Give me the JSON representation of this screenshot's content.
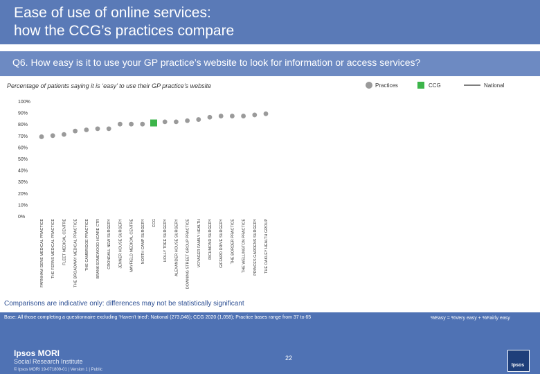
{
  "header": {
    "title": "Ease of use of online services:\nhow the CCG’s practices compare",
    "question": "Q6. How easy is it to use your GP practice’s website to look for information or access services?"
  },
  "legend": {
    "practices": "Practices",
    "ccg": "CCG",
    "national": "National"
  },
  "colors": {
    "practice": "#9a9a9a",
    "ccg": "#3cb54a",
    "national": "#555555",
    "title_band": "#5a7ab7",
    "footer_band": "#4f72b4"
  },
  "chart_data": {
    "type": "scatter",
    "title": "Percentage of patients saying it is ‘easy’ to use their GP practice’s website",
    "ylim": [
      0,
      100
    ],
    "ytick_labels": [
      "0%",
      "10%",
      "20%",
      "30%",
      "40%",
      "50%",
      "60%",
      "70%",
      "80%",
      "90%",
      "100%"
    ],
    "categories": [
      "FARNHAM DENE MEDICAL PRACTICE",
      "THE FERNS MEDICAL PRACTICE",
      "FLEET MEDICAL CENTRE",
      "THE BROADWAY MEDICAL PRACTICE",
      "THE CAMBRIDGE PRACTICE",
      "BRANKSOMEWOOD HCARE CTR",
      "CRONDALL NEW SURGERY",
      "JENNER HOUSE SURGERY",
      "MAYFIELD MEDICAL CENTRE",
      "NORTH CAMP SURGERY",
      "CCG",
      "HOLLY TREE SURGERY",
      "ALEXANDER HOUSE SURGERY",
      "DOWNING STREET GROUP PRACTICE",
      "VOYAGER FAMILY HEALTH",
      "RICHMOND SURGERY",
      "GIFFARD DRIVE SURGERY",
      "THE BORDER PRACTICE",
      "THE WELLINGTON PRACTICE",
      "PRINCES GARDENS SURGERY",
      "THE OAKLEY HEALTH GROUP"
    ],
    "values": [
      69,
      70,
      71,
      74,
      75,
      76,
      76,
      80,
      80,
      80,
      81,
      82,
      82,
      83,
      84,
      86,
      87,
      87,
      87,
      88,
      89
    ],
    "ccg_category": "CCG",
    "national": null,
    "note": "Comparisons are indicative only: differences may not be statistically significant"
  },
  "footer": {
    "base": "Base: All those completing a questionnaire excluding ‘Haven’t tried’: National (273,048); CCG 2020 (1,058); Practice bases range from 37 to 65",
    "key": "%Easy = %Very easy + %Fairly easy",
    "page_number": "22",
    "logo_name": "Ipsos MORI",
    "logo_sub": "Social Research Institute",
    "copyright": "© Ipsos MORI     19-071809-01 | Version 1 | Public",
    "ipsos_mark": "Ipsos"
  }
}
